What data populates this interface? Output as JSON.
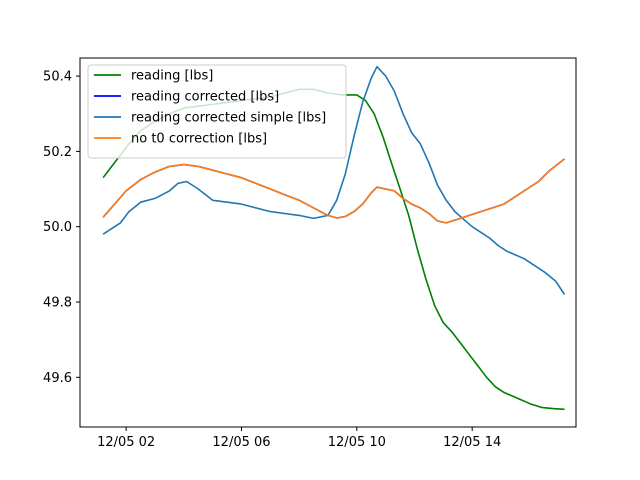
{
  "chart_data": {
    "type": "line",
    "title": "",
    "xlabel": "",
    "ylabel": "",
    "xlim": [
      0.4,
      17.6
    ],
    "ylim": [
      49.468,
      50.448
    ],
    "x_ticks": [
      {
        "value": 2,
        "label": "12/05 02"
      },
      {
        "value": 6,
        "label": "12/05 06"
      },
      {
        "value": 10,
        "label": "12/05 10"
      },
      {
        "value": 14,
        "label": "12/05 14"
      }
    ],
    "y_ticks": [
      {
        "value": 49.6,
        "label": "49.6"
      },
      {
        "value": 49.8,
        "label": "49.8"
      },
      {
        "value": 50.0,
        "label": "50.0"
      },
      {
        "value": 50.2,
        "label": "50.2"
      },
      {
        "value": 50.4,
        "label": "50.4"
      }
    ],
    "legend_position": "top-left",
    "series": [
      {
        "name": "reading [lbs]",
        "color": "#008000",
        "points": [
          [
            1.2,
            50.13
          ],
          [
            1.5,
            50.16
          ],
          [
            1.8,
            50.19
          ],
          [
            2.1,
            50.22
          ],
          [
            2.5,
            50.255
          ],
          [
            3.0,
            50.28
          ],
          [
            3.5,
            50.3
          ],
          [
            4.0,
            50.315
          ],
          [
            4.5,
            50.32
          ],
          [
            5.0,
            50.325
          ],
          [
            5.5,
            50.33
          ],
          [
            6.0,
            50.335
          ],
          [
            6.5,
            50.34
          ],
          [
            7.0,
            50.345
          ],
          [
            7.5,
            50.355
          ],
          [
            8.0,
            50.365
          ],
          [
            8.5,
            50.365
          ],
          [
            9.0,
            50.355
          ],
          [
            9.5,
            50.35
          ],
          [
            10.0,
            50.35
          ],
          [
            10.3,
            50.335
          ],
          [
            10.6,
            50.3
          ],
          [
            10.9,
            50.24
          ],
          [
            11.2,
            50.17
          ],
          [
            11.5,
            50.1
          ],
          [
            11.8,
            50.03
          ],
          [
            12.1,
            49.94
          ],
          [
            12.4,
            49.86
          ],
          [
            12.7,
            49.79
          ],
          [
            13.0,
            49.745
          ],
          [
            13.3,
            49.72
          ],
          [
            13.6,
            49.69
          ],
          [
            13.9,
            49.66
          ],
          [
            14.2,
            49.63
          ],
          [
            14.5,
            49.6
          ],
          [
            14.8,
            49.575
          ],
          [
            15.1,
            49.56
          ],
          [
            15.4,
            49.55
          ],
          [
            15.7,
            49.54
          ],
          [
            16.0,
            49.53
          ],
          [
            16.4,
            49.52
          ],
          [
            16.8,
            49.517
          ],
          [
            17.2,
            49.515
          ]
        ]
      },
      {
        "name": "reading corrected [lbs]",
        "color": "#0000ff",
        "points": [
          [
            1.2,
            50.025
          ],
          [
            1.6,
            50.06
          ],
          [
            2.0,
            50.095
          ],
          [
            2.5,
            50.125
          ],
          [
            3.0,
            50.145
          ],
          [
            3.5,
            50.16
          ],
          [
            4.0,
            50.165
          ],
          [
            4.5,
            50.16
          ],
          [
            5.0,
            50.15
          ],
          [
            5.5,
            50.14
          ],
          [
            6.0,
            50.13
          ],
          [
            6.5,
            50.115
          ],
          [
            7.0,
            50.1
          ],
          [
            7.5,
            50.085
          ],
          [
            8.0,
            50.07
          ],
          [
            8.5,
            50.05
          ],
          [
            9.0,
            50.03
          ],
          [
            9.3,
            50.023
          ],
          [
            9.6,
            50.027
          ],
          [
            9.9,
            50.04
          ],
          [
            10.2,
            50.06
          ],
          [
            10.5,
            50.09
          ],
          [
            10.7,
            50.105
          ],
          [
            11.0,
            50.1
          ],
          [
            11.3,
            50.095
          ],
          [
            11.6,
            50.075
          ],
          [
            11.9,
            50.06
          ],
          [
            12.2,
            50.05
          ],
          [
            12.5,
            50.035
          ],
          [
            12.8,
            50.015
          ],
          [
            13.1,
            50.01
          ],
          [
            13.5,
            50.02
          ],
          [
            13.9,
            50.03
          ],
          [
            14.3,
            50.04
          ],
          [
            14.7,
            50.05
          ],
          [
            15.1,
            50.06
          ],
          [
            15.5,
            50.08
          ],
          [
            15.9,
            50.1
          ],
          [
            16.3,
            50.12
          ],
          [
            16.7,
            50.15
          ],
          [
            17.2,
            50.18
          ]
        ]
      },
      {
        "name": "reading corrected simple [lbs]",
        "color": "#1f77b4",
        "points": [
          [
            1.2,
            49.98
          ],
          [
            1.5,
            49.995
          ],
          [
            1.8,
            50.01
          ],
          [
            2.1,
            50.04
          ],
          [
            2.5,
            50.065
          ],
          [
            3.0,
            50.075
          ],
          [
            3.5,
            50.095
          ],
          [
            3.8,
            50.115
          ],
          [
            4.1,
            50.12
          ],
          [
            4.5,
            50.1
          ],
          [
            5.0,
            50.07
          ],
          [
            5.5,
            50.065
          ],
          [
            6.0,
            50.06
          ],
          [
            6.5,
            50.05
          ],
          [
            7.0,
            50.04
          ],
          [
            7.5,
            50.035
          ],
          [
            8.0,
            50.03
          ],
          [
            8.5,
            50.022
          ],
          [
            9.0,
            50.03
          ],
          [
            9.3,
            50.07
          ],
          [
            9.6,
            50.14
          ],
          [
            9.9,
            50.24
          ],
          [
            10.2,
            50.33
          ],
          [
            10.5,
            50.395
          ],
          [
            10.7,
            50.425
          ],
          [
            11.0,
            50.4
          ],
          [
            11.3,
            50.36
          ],
          [
            11.6,
            50.3
          ],
          [
            11.9,
            50.25
          ],
          [
            12.2,
            50.22
          ],
          [
            12.5,
            50.17
          ],
          [
            12.8,
            50.11
          ],
          [
            13.1,
            50.07
          ],
          [
            13.4,
            50.04
          ],
          [
            13.7,
            50.02
          ],
          [
            14.0,
            50.0
          ],
          [
            14.3,
            49.985
          ],
          [
            14.6,
            49.97
          ],
          [
            14.9,
            49.95
          ],
          [
            15.2,
            49.935
          ],
          [
            15.5,
            49.925
          ],
          [
            15.8,
            49.915
          ],
          [
            16.1,
            49.9
          ],
          [
            16.5,
            49.88
          ],
          [
            16.9,
            49.855
          ],
          [
            17.2,
            49.82
          ]
        ]
      },
      {
        "name": "no t0 correction [lbs]",
        "color": "#ff7f0e",
        "points": [
          [
            1.2,
            50.025
          ],
          [
            1.6,
            50.06
          ],
          [
            2.0,
            50.095
          ],
          [
            2.5,
            50.125
          ],
          [
            3.0,
            50.145
          ],
          [
            3.5,
            50.16
          ],
          [
            4.0,
            50.165
          ],
          [
            4.5,
            50.16
          ],
          [
            5.0,
            50.15
          ],
          [
            5.5,
            50.14
          ],
          [
            6.0,
            50.13
          ],
          [
            6.5,
            50.115
          ],
          [
            7.0,
            50.1
          ],
          [
            7.5,
            50.085
          ],
          [
            8.0,
            50.07
          ],
          [
            8.5,
            50.05
          ],
          [
            9.0,
            50.03
          ],
          [
            9.3,
            50.023
          ],
          [
            9.6,
            50.027
          ],
          [
            9.9,
            50.04
          ],
          [
            10.2,
            50.06
          ],
          [
            10.5,
            50.09
          ],
          [
            10.7,
            50.105
          ],
          [
            11.0,
            50.1
          ],
          [
            11.3,
            50.095
          ],
          [
            11.6,
            50.075
          ],
          [
            11.9,
            50.06
          ],
          [
            12.2,
            50.05
          ],
          [
            12.5,
            50.035
          ],
          [
            12.8,
            50.015
          ],
          [
            13.1,
            50.01
          ],
          [
            13.5,
            50.02
          ],
          [
            13.9,
            50.03
          ],
          [
            14.3,
            50.04
          ],
          [
            14.7,
            50.05
          ],
          [
            15.1,
            50.06
          ],
          [
            15.5,
            50.08
          ],
          [
            15.9,
            50.1
          ],
          [
            16.3,
            50.12
          ],
          [
            16.7,
            50.15
          ],
          [
            17.2,
            50.18
          ]
        ]
      }
    ]
  }
}
